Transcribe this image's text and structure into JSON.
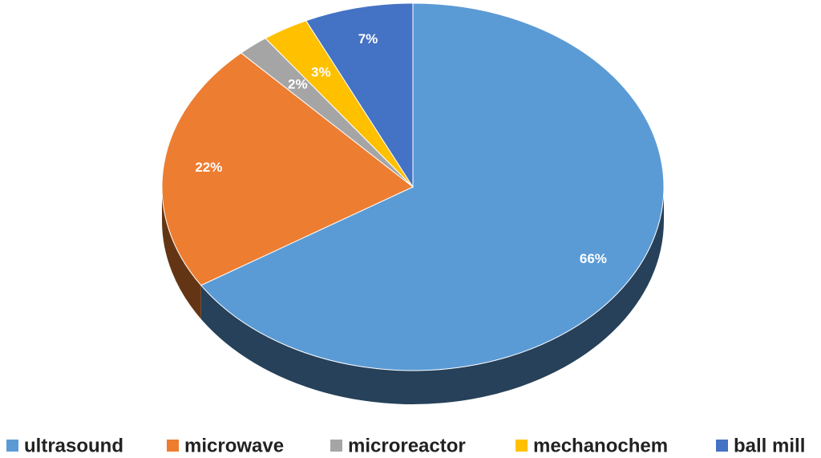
{
  "chart_data": {
    "type": "pie",
    "categories": [
      "ultrasound",
      "microwave",
      "microreactor",
      "mechanochem",
      "ball mill"
    ],
    "values": [
      66,
      22,
      2,
      3,
      7
    ],
    "value_labels": [
      "66%",
      "22%",
      "2%",
      "3%",
      "7%"
    ],
    "colors": [
      "#5b9bd5",
      "#ed7d31",
      "#a5a5a5",
      "#ffc000",
      "#4472c4"
    ],
    "legend": "bottom"
  }
}
